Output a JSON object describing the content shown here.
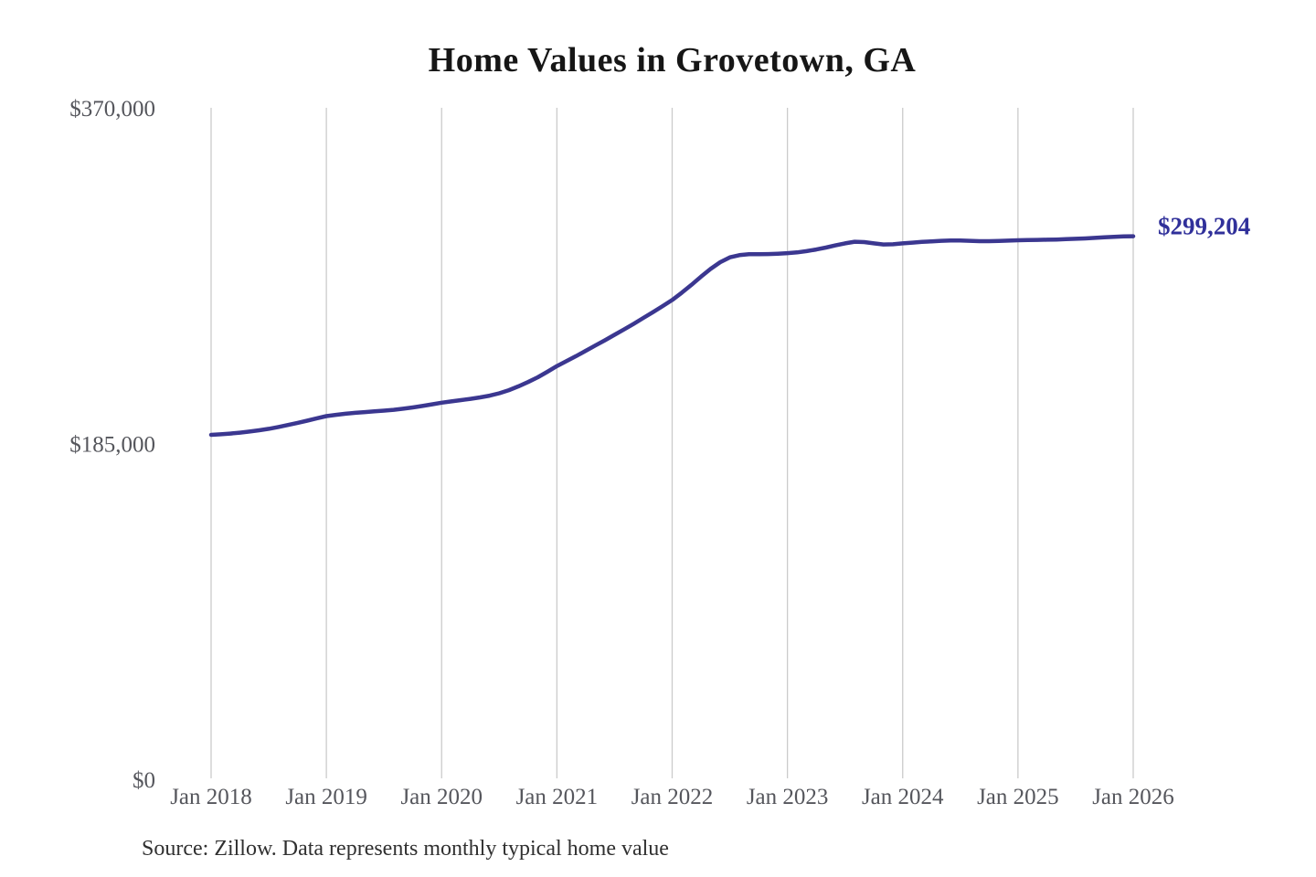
{
  "chart": {
    "title": "Home Values in Grovetown, GA",
    "end_label": "$299,204",
    "source_note": "Source: Zillow. Data represents monthly typical home value",
    "colors": {
      "line": "#3b3790",
      "end_label_text": "#30309a",
      "grid": "#cbcbcb",
      "axis_text": "#55565c",
      "title_text": "#161616",
      "source_text": "#303030",
      "background": "#ffffff"
    }
  },
  "chart_data": {
    "type": "line",
    "title": "Home Values in Grovetown, GA",
    "xlabel": "",
    "ylabel": "",
    "x_interval": "monthly",
    "x_start": "Jan 2018",
    "x_end": "Jan 2026",
    "x_tick_labels": [
      "Jan 2018",
      "Jan 2019",
      "Jan 2020",
      "Jan 2021",
      "Jan 2022",
      "Jan 2023",
      "Jan 2024",
      "Jan 2025",
      "Jan 2026"
    ],
    "y_ticks": [
      {
        "value": 0,
        "label": "$0"
      },
      {
        "value": 185000,
        "label": "$185,000"
      },
      {
        "value": 370000,
        "label": "$370,000"
      }
    ],
    "ylim": [
      0,
      370000
    ],
    "grid": "vertical-only",
    "legend": "none",
    "series": [
      {
        "name": "Monthly typical home value",
        "end_value": 299204,
        "end_value_label": "$299,204",
        "values": [
          189800,
          190100,
          190500,
          191000,
          191600,
          192300,
          193100,
          194100,
          195200,
          196400,
          197600,
          198900,
          200100,
          200800,
          201400,
          201900,
          202300,
          202700,
          203100,
          203600,
          204200,
          204900,
          205700,
          206600,
          207500,
          208200,
          208900,
          209600,
          210400,
          211400,
          212700,
          214400,
          216500,
          218900,
          221500,
          224500,
          227700,
          230400,
          233200,
          236100,
          239000,
          241900,
          244900,
          247900,
          251000,
          254200,
          257400,
          260700,
          264100,
          268100,
          272400,
          276900,
          281200,
          284900,
          287600,
          288800,
          289300,
          289300,
          289400,
          289600,
          289900,
          290300,
          291000,
          291900,
          293000,
          294200,
          295300,
          296200,
          296000,
          295300,
          294700,
          294800,
          295300,
          295700,
          296100,
          296400,
          296700,
          296900,
          296900,
          296700,
          296500,
          296500,
          296600,
          296800,
          297000,
          297100,
          297200,
          297300,
          297400,
          297600,
          297800,
          298000,
          298300,
          298600,
          298900,
          299100,
          299204
        ]
      }
    ]
  }
}
